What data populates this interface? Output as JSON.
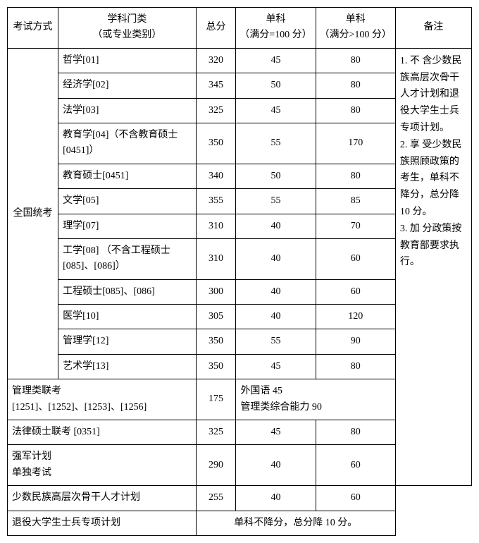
{
  "header": {
    "exam_method": "考试方式",
    "subject_category": "学科门类\n（或专业类别）",
    "total": "总分",
    "single1": "单科\n（满分=100 分）",
    "single2": "单科\n（满分>100 分）",
    "notes": "备注"
  },
  "national_exam_label": "全国统考",
  "national_rows": [
    {
      "subject": "哲学[01]",
      "total": "320",
      "s1": "45",
      "s2": "80"
    },
    {
      "subject": "经济学[02]",
      "total": "345",
      "s1": "50",
      "s2": "80"
    },
    {
      "subject": "法学[03]",
      "total": "325",
      "s1": "45",
      "s2": "80"
    },
    {
      "subject": "教育学[04]（不含教育硕士[0451]）",
      "total": "350",
      "s1": "55",
      "s2": "170"
    },
    {
      "subject": "教育硕士[0451]",
      "total": "340",
      "s1": "50",
      "s2": "80"
    },
    {
      "subject": "文学[05]",
      "total": "355",
      "s1": "55",
      "s2": "85"
    },
    {
      "subject": "理学[07]",
      "total": "310",
      "s1": "40",
      "s2": "70"
    },
    {
      "subject": "工学[08] （不含工程硕士[085]、[086]）",
      "total": "310",
      "s1": "40",
      "s2": "60"
    },
    {
      "subject": "工程硕士[085]、[086]",
      "total": "300",
      "s1": "40",
      "s2": "60"
    },
    {
      "subject": "医学[10]",
      "total": "305",
      "s1": "40",
      "s2": "120"
    },
    {
      "subject": "管理学[12]",
      "total": "350",
      "s1": "55",
      "s2": "90"
    },
    {
      "subject": "艺术学[13]",
      "total": "350",
      "s1": "45",
      "s2": "80"
    }
  ],
  "mgmt_row": {
    "label": "管理类联考\n[1251]、[1252]、[1253]、[1256]",
    "total": "175",
    "combined": "外国语 45\n管理类综合能力 90"
  },
  "law_row": {
    "label": "法律硕士联考 [0351]",
    "total": "325",
    "s1": "45",
    "s2": "80"
  },
  "strong_row": {
    "label": "强军计划\n单独考试",
    "total": "290",
    "s1": "40",
    "s2": "60"
  },
  "minority_row": {
    "label": "少数民族高层次骨干人才计划",
    "total": "255",
    "s1": "40",
    "s2": "60"
  },
  "veteran_row": {
    "label": "退役大学生士兵专项计划",
    "combined": "单科不降分，总分降 10 分。"
  },
  "notes_text": "1. 不 含少数民族高层次骨干人才计划和退役大学生士兵专项计划。\n2. 享 受少数民族照顾政策的考生，单科不降分，总分降 10 分。\n3. 加 分政策按教育部要求执行。"
}
